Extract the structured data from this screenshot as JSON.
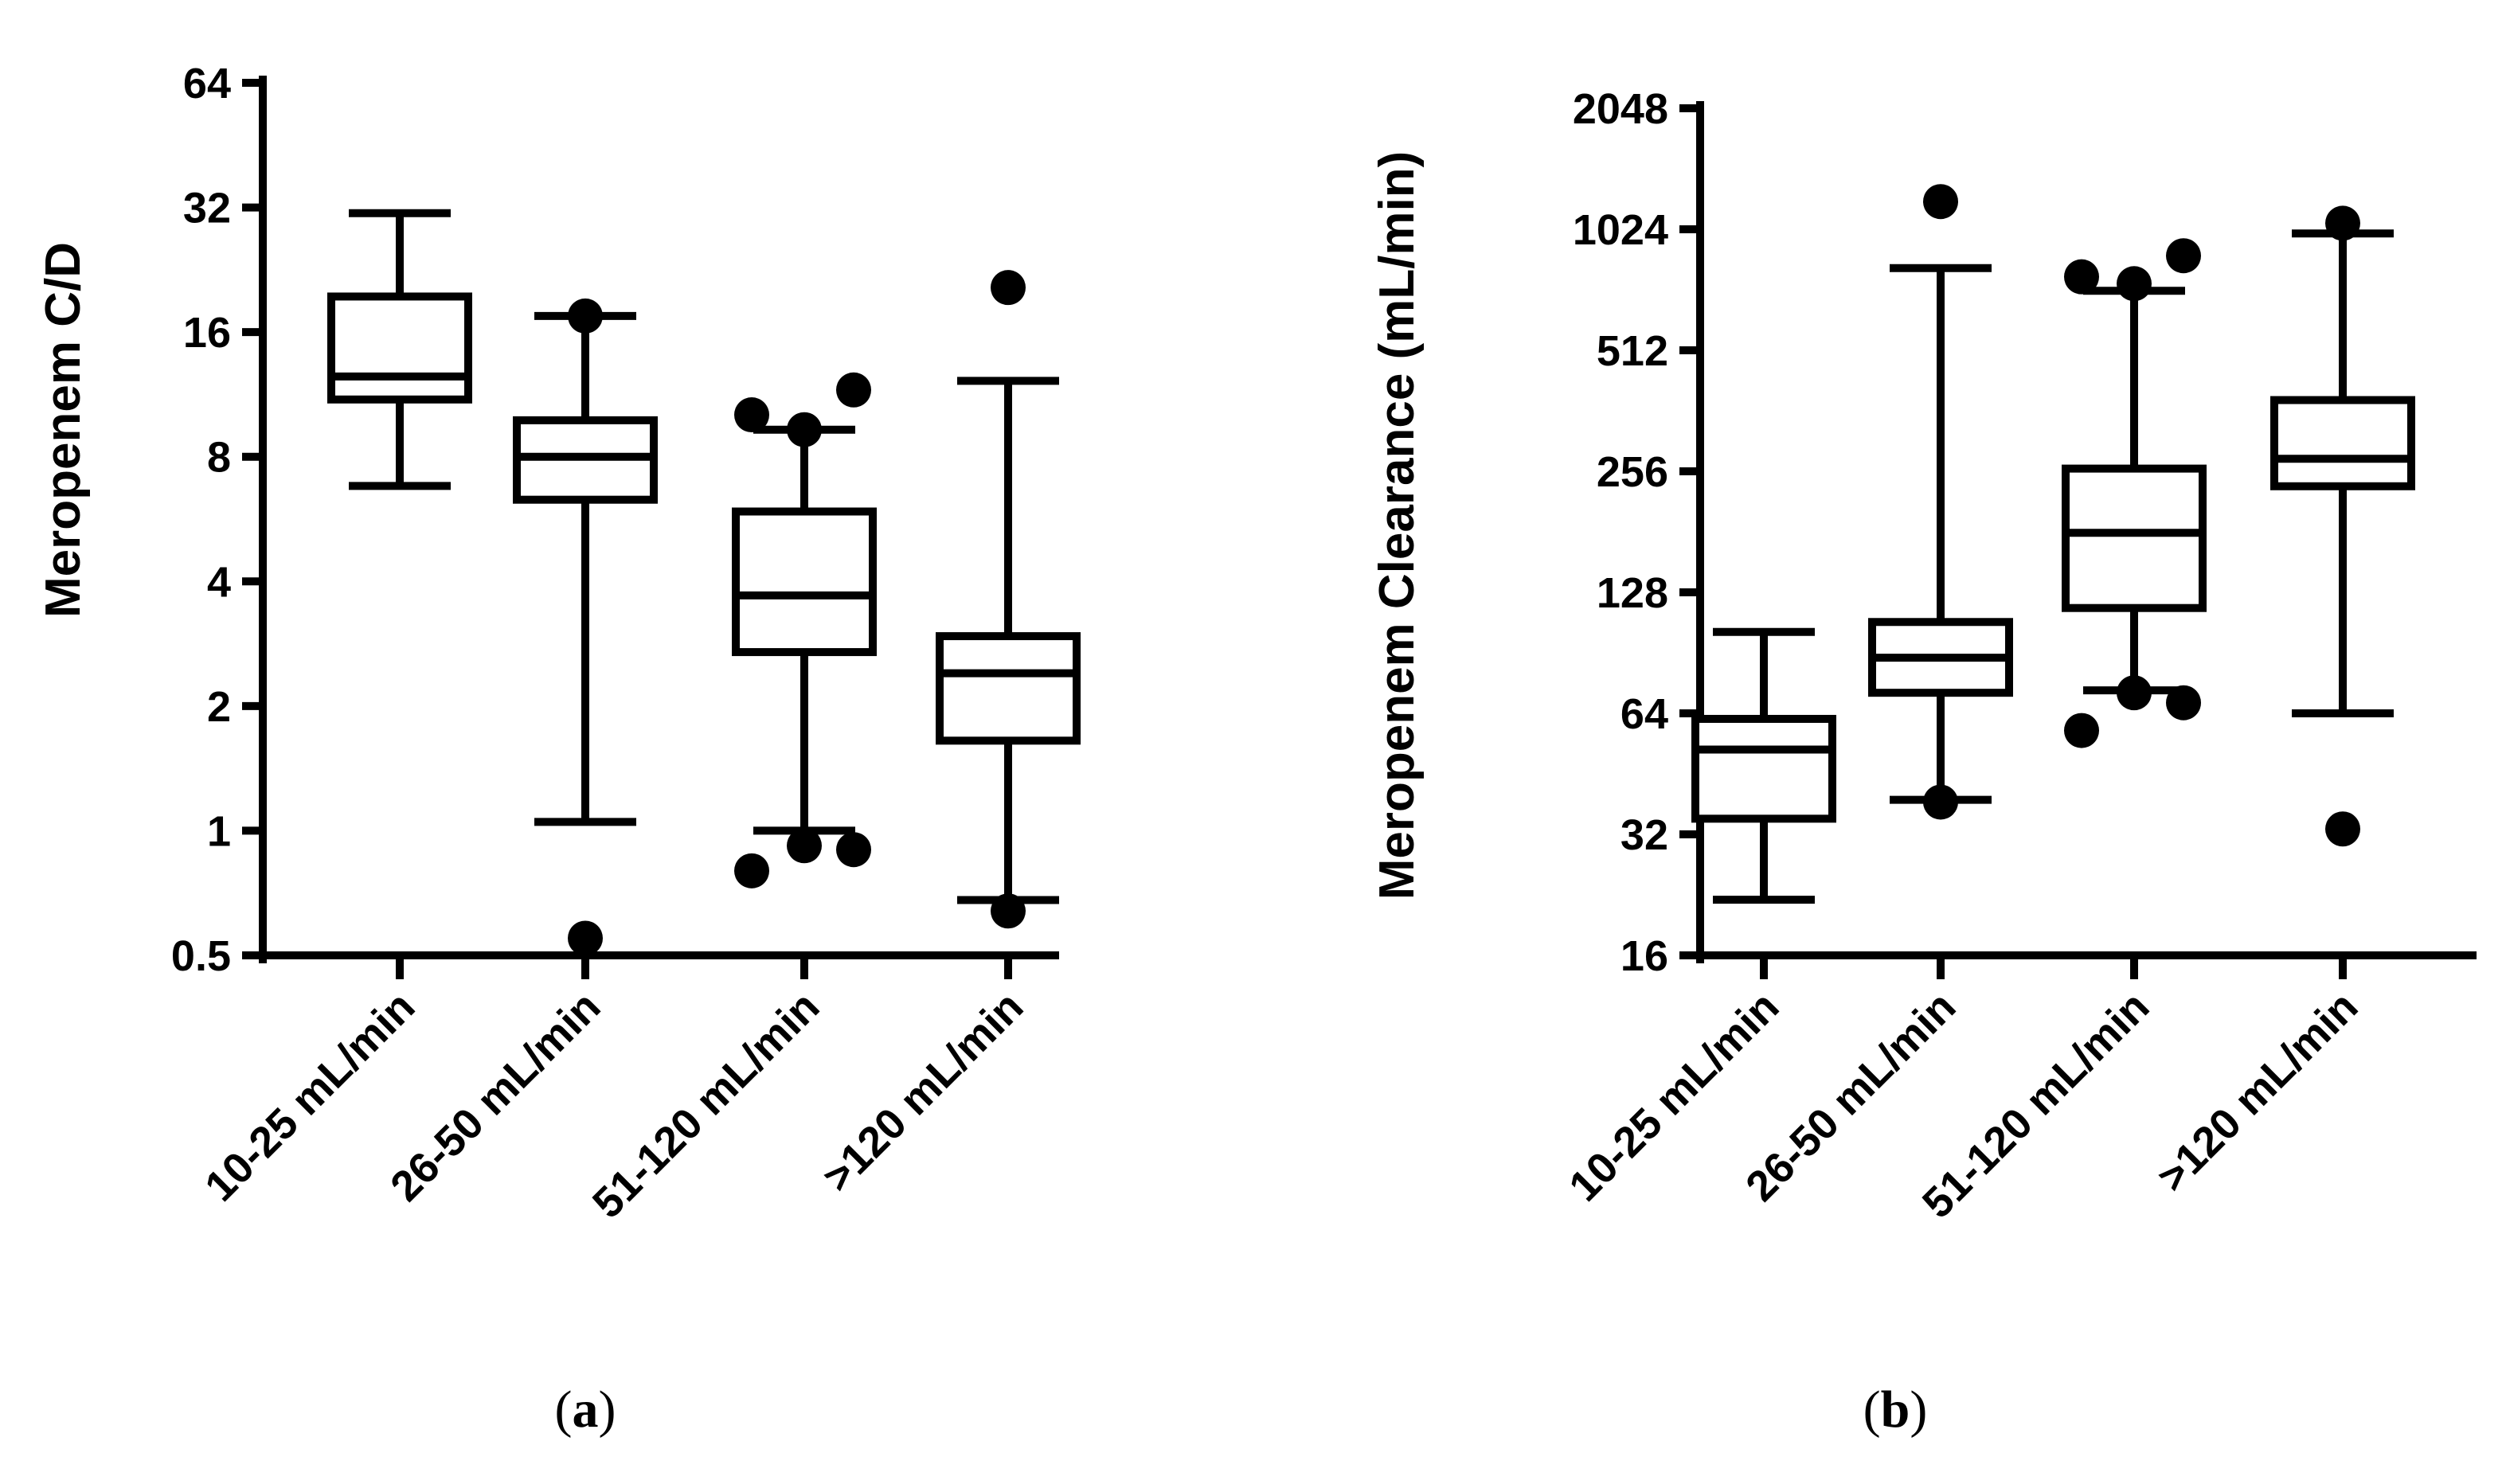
{
  "chart_data": [
    {
      "type": "box",
      "panel_label": "a",
      "title": "",
      "xlabel": "",
      "ylabel": "Meropenem C/D",
      "yscale": "log2",
      "ylim": [
        0.5,
        64
      ],
      "yticks": [
        0.5,
        1,
        2,
        4,
        8,
        16,
        32,
        64
      ],
      "ytick_labels": [
        "0.5",
        "1",
        "2",
        "4",
        "8",
        "16",
        "32",
        "64"
      ],
      "categories": [
        "10-25 mL/min",
        "26-50 mL/min",
        "51-120 mL/min",
        ">120 mL/min"
      ],
      "boxes": [
        {
          "whisker_low": 6.8,
          "q1": 11.0,
          "median": 12.5,
          "q3": 19.5,
          "whisker_high": 31,
          "outliers": []
        },
        {
          "whisker_low": 1.05,
          "q1": 6.3,
          "median": 8.0,
          "q3": 9.8,
          "whisker_high": 17.5,
          "outliers": [
            0.55,
            17.5
          ]
        },
        {
          "whisker_low": 1.0,
          "q1": 2.7,
          "median": 3.7,
          "q3": 5.9,
          "whisker_high": 9.3,
          "outliers": [
            0.8,
            0.92,
            0.9,
            10.1,
            9.3,
            11.6
          ]
        },
        {
          "whisker_low": 0.68,
          "q1": 1.65,
          "median": 2.4,
          "q3": 2.95,
          "whisker_high": 12.2,
          "outliers": [
            0.64,
            20.5
          ]
        }
      ],
      "grid": false
    },
    {
      "type": "box",
      "panel_label": "b",
      "title": "",
      "xlabel": "",
      "ylabel": "Meropenem Clearance (mL/min)",
      "yscale": "log2",
      "ylim": [
        16,
        2048
      ],
      "yticks": [
        16,
        32,
        64,
        128,
        256,
        512,
        1024,
        2048
      ],
      "ytick_labels": [
        "16",
        "32",
        "64",
        "128",
        "256",
        "512",
        "1024",
        "2048"
      ],
      "categories": [
        "10-25 mL/min",
        "26-50 mL/min",
        "51-120 mL/min",
        ">120 mL/min"
      ],
      "boxes": [
        {
          "whisker_low": 22,
          "q1": 35,
          "median": 52,
          "q3": 62,
          "whisker_high": 102,
          "outliers": []
        },
        {
          "whisker_low": 39,
          "q1": 72,
          "median": 88,
          "q3": 108,
          "whisker_high": 820,
          "outliers": [
            38.5,
            1200
          ]
        },
        {
          "whisker_low": 73,
          "q1": 117,
          "median": 180,
          "q3": 260,
          "whisker_high": 720,
          "outliers": [
            58,
            72,
            68,
            780,
            750,
            880
          ]
        },
        {
          "whisker_low": 64,
          "q1": 235,
          "median": 275,
          "q3": 385,
          "whisker_high": 1000,
          "outliers": [
            33,
            1060
          ]
        }
      ],
      "grid": false
    }
  ]
}
